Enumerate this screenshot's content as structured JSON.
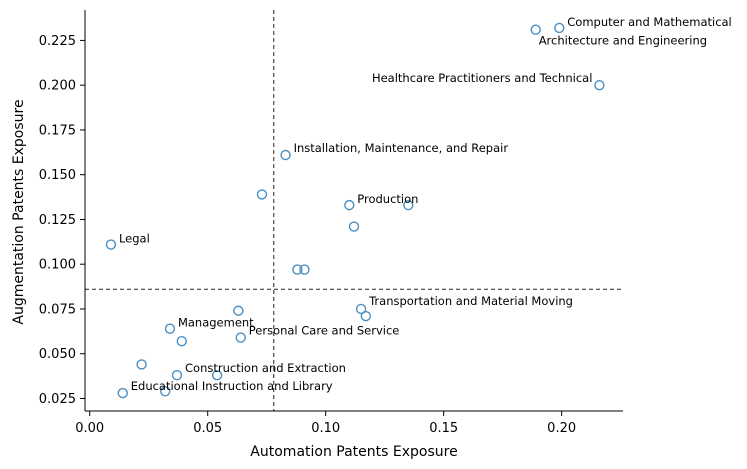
{
  "chart_data": {
    "type": "scatter",
    "title": "",
    "xlabel": "Automation Patents Exposure",
    "ylabel": "Augmentation Patents Exposure",
    "xlim": [
      -0.002,
      0.226
    ],
    "ylim": [
      0.018,
      0.242
    ],
    "x_ticks": [
      0.0,
      0.05,
      0.1,
      0.15,
      0.2
    ],
    "x_tick_labels": [
      "0.00",
      "0.05",
      "0.10",
      "0.15",
      "0.20"
    ],
    "y_ticks": [
      0.025,
      0.05,
      0.075,
      0.1,
      0.125,
      0.15,
      0.175,
      0.2,
      0.225
    ],
    "y_tick_labels": [
      "0.025",
      "0.050",
      "0.075",
      "0.100",
      "0.125",
      "0.150",
      "0.175",
      "0.200",
      "0.225"
    ],
    "reference_lines": {
      "x": 0.078,
      "y": 0.086
    },
    "grid": false,
    "marker_color": "#4a8fc2",
    "points": [
      {
        "x": 0.199,
        "y": 0.232,
        "label": "Computer and Mathematical"
      },
      {
        "x": 0.189,
        "y": 0.231,
        "label": "Architecture and Engineering"
      },
      {
        "x": 0.216,
        "y": 0.2,
        "label": "Healthcare Practitioners and Technical"
      },
      {
        "x": 0.083,
        "y": 0.161,
        "label": "Installation, Maintenance, and Repair"
      },
      {
        "x": 0.073,
        "y": 0.139,
        "label": ""
      },
      {
        "x": 0.11,
        "y": 0.133,
        "label": "Production"
      },
      {
        "x": 0.135,
        "y": 0.133,
        "label": ""
      },
      {
        "x": 0.112,
        "y": 0.121,
        "label": ""
      },
      {
        "x": 0.009,
        "y": 0.111,
        "label": "Legal"
      },
      {
        "x": 0.088,
        "y": 0.097,
        "label": ""
      },
      {
        "x": 0.091,
        "y": 0.097,
        "label": ""
      },
      {
        "x": 0.115,
        "y": 0.075,
        "label": "Transportation and Material Moving"
      },
      {
        "x": 0.117,
        "y": 0.071,
        "label": ""
      },
      {
        "x": 0.063,
        "y": 0.074,
        "label": ""
      },
      {
        "x": 0.034,
        "y": 0.064,
        "label": "Management"
      },
      {
        "x": 0.064,
        "y": 0.059,
        "label": "Personal Care and Service"
      },
      {
        "x": 0.039,
        "y": 0.057,
        "label": ""
      },
      {
        "x": 0.022,
        "y": 0.044,
        "label": ""
      },
      {
        "x": 0.037,
        "y": 0.038,
        "label": "Construction and Extraction"
      },
      {
        "x": 0.054,
        "y": 0.038,
        "label": ""
      },
      {
        "x": 0.014,
        "y": 0.028,
        "label": "Educational Instruction and Library"
      },
      {
        "x": 0.032,
        "y": 0.029,
        "label": ""
      }
    ]
  }
}
